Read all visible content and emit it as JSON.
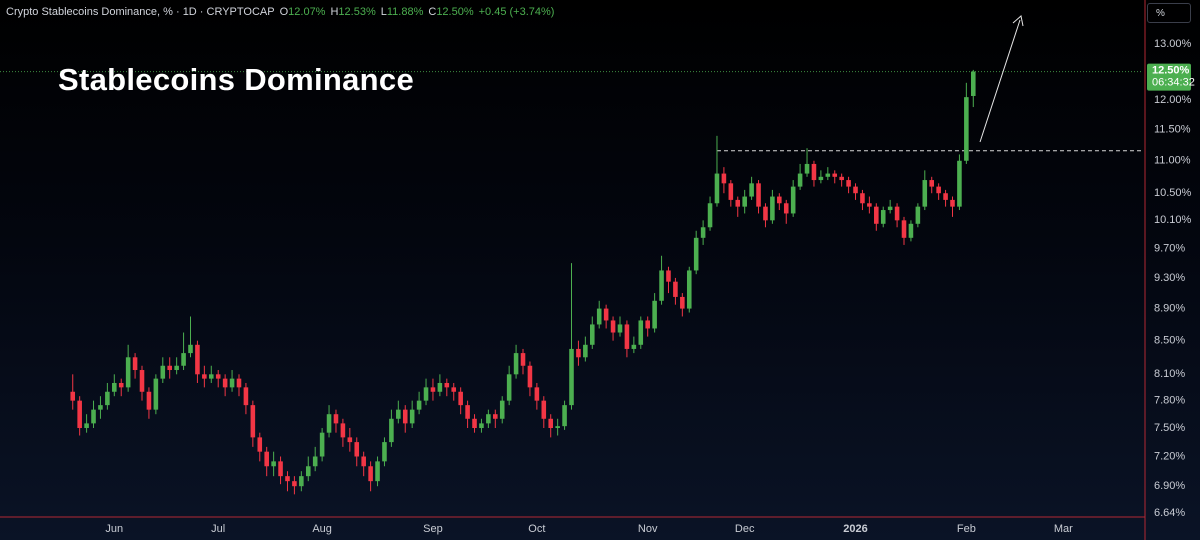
{
  "chart_data": {
    "type": "candlestick",
    "symbol": "Crypto Stablecoins Dominance, % · 1D · CRYPTOCAP",
    "ohlc_legend": [
      {
        "key": "O",
        "value": "12.07%"
      },
      {
        "key": "H",
        "value": "12.53%"
      },
      {
        "key": "L",
        "value": "11.88%"
      },
      {
        "key": "C",
        "value": "12.50%"
      }
    ],
    "change": "+0.45 (+3.74%)",
    "title": "Stablecoins Dominance",
    "unit_button": "%",
    "last_price_label": "12.50%",
    "countdown": "06:34:32",
    "resistance_level": 11.16,
    "log_scale": true,
    "grid": false,
    "up_color": "#4caf50",
    "down_color": "#f23645",
    "ylim": [
      6.64,
      13.85
    ],
    "yticks": [
      {
        "value": 13,
        "label": "13.00%"
      },
      {
        "value": 12,
        "label": "12.00%"
      },
      {
        "value": 11.5,
        "label": "11.50%"
      },
      {
        "value": 11,
        "label": "11.00%"
      },
      {
        "value": 10.5,
        "label": "10.50%"
      },
      {
        "value": 10.1,
        "label": "10.10%"
      },
      {
        "value": 9.7,
        "label": "9.70%"
      },
      {
        "value": 9.3,
        "label": "9.30%"
      },
      {
        "value": 8.9,
        "label": "8.90%"
      },
      {
        "value": 8.5,
        "label": "8.50%"
      },
      {
        "value": 8.1,
        "label": "8.10%"
      },
      {
        "value": 7.8,
        "label": "7.80%"
      },
      {
        "value": 7.5,
        "label": "7.50%"
      },
      {
        "value": 7.2,
        "label": "7.20%"
      },
      {
        "value": 6.9,
        "label": "6.90%"
      },
      {
        "value": 6.64,
        "label": "6.64%"
      }
    ],
    "categories": [
      null,
      null,
      null,
      null,
      null,
      null,
      null,
      null,
      null,
      null,
      null,
      null,
      null,
      null,
      null,
      null,
      "Jun",
      null,
      null,
      null,
      null,
      null,
      null,
      null,
      null,
      null,
      null,
      null,
      null,
      null,
      null,
      "Jul",
      null,
      null,
      null,
      null,
      null,
      null,
      null,
      null,
      null,
      null,
      null,
      null,
      null,
      null,
      "Aug",
      null,
      null,
      null,
      null,
      null,
      null,
      null,
      null,
      null,
      null,
      null,
      null,
      null,
      null,
      null,
      "Sep",
      null,
      null,
      null,
      null,
      null,
      null,
      null,
      null,
      null,
      null,
      null,
      null,
      null,
      null,
      "Oct",
      null,
      null,
      null,
      null,
      null,
      null,
      null,
      null,
      null,
      null,
      null,
      null,
      null,
      null,
      null,
      "Nov",
      null,
      null,
      null,
      null,
      null,
      null,
      null,
      null,
      null,
      null,
      null,
      null,
      null,
      "Dec",
      null,
      null,
      null,
      null,
      null,
      null,
      null,
      null,
      null,
      null,
      null,
      null,
      null,
      null,
      null,
      "2026",
      null,
      null,
      null,
      null,
      null,
      null,
      null,
      null,
      null,
      null,
      null,
      null,
      null,
      null,
      null,
      "Feb",
      null,
      null,
      null,
      null,
      null,
      null,
      null,
      null,
      null,
      null,
      null,
      null,
      null,
      "Mar",
      null,
      null,
      null,
      null,
      null,
      null,
      null,
      null,
      null,
      null,
      null
    ],
    "open": [
      null,
      null,
      null,
      null,
      null,
      null,
      null,
      null,
      null,
      null,
      7.9,
      7.8,
      7.5,
      7.55,
      7.7,
      7.75,
      7.9,
      8.0,
      7.95,
      8.3,
      8.15,
      7.9,
      7.7,
      8.05,
      8.2,
      8.15,
      8.2,
      8.35,
      8.45,
      8.1,
      8.05,
      8.1,
      8.05,
      7.95,
      8.05,
      7.95,
      7.75,
      7.4,
      7.25,
      7.1,
      7.15,
      7.0,
      6.95,
      6.9,
      7.0,
      7.1,
      7.2,
      7.45,
      7.65,
      7.55,
      7.4,
      7.35,
      7.2,
      7.1,
      6.95,
      7.15,
      7.35,
      7.6,
      7.7,
      7.55,
      7.7,
      7.8,
      7.95,
      7.9,
      8.0,
      7.95,
      7.9,
      7.75,
      7.6,
      7.5,
      7.55,
      7.65,
      7.6,
      7.8,
      8.1,
      8.35,
      8.2,
      7.95,
      7.8,
      7.6,
      7.5,
      7.52,
      7.75,
      8.4,
      8.3,
      8.45,
      8.7,
      8.9,
      8.75,
      8.6,
      8.7,
      8.4,
      8.45,
      8.75,
      8.65,
      9.0,
      9.4,
      9.25,
      9.05,
      8.9,
      9.4,
      9.85,
      10.0,
      10.35,
      10.8,
      10.65,
      10.4,
      10.3,
      10.45,
      10.65,
      10.3,
      10.1,
      10.45,
      10.35,
      10.2,
      10.6,
      10.8,
      10.95,
      10.7,
      10.75,
      10.8,
      10.75,
      10.7,
      10.6,
      10.5,
      10.35,
      10.3,
      10.05,
      10.25,
      10.3,
      10.1,
      9.85,
      10.05,
      10.3,
      10.7,
      10.6,
      10.5,
      10.4,
      10.3,
      11.0,
      12.07,
      null,
      null,
      null,
      null,
      null,
      null,
      null,
      null,
      null,
      null,
      null,
      null,
      null,
      null,
      null,
      null,
      null,
      null,
      null,
      null,
      null,
      null,
      null,
      null
    ],
    "high": [
      null,
      null,
      null,
      null,
      null,
      null,
      null,
      null,
      null,
      null,
      8.1,
      7.85,
      7.65,
      7.8,
      7.85,
      8.0,
      8.1,
      8.05,
      8.45,
      8.35,
      8.2,
      7.95,
      8.1,
      8.3,
      8.3,
      8.3,
      8.6,
      8.8,
      8.5,
      8.2,
      8.2,
      8.15,
      8.1,
      8.15,
      8.1,
      8.0,
      7.8,
      7.45,
      7.3,
      7.25,
      7.2,
      7.05,
      7.0,
      7.05,
      7.2,
      7.3,
      7.5,
      7.75,
      7.7,
      7.6,
      7.5,
      7.4,
      7.25,
      7.15,
      7.2,
      7.4,
      7.7,
      7.8,
      7.75,
      7.8,
      7.9,
      8.05,
      8.05,
      8.1,
      8.05,
      8.0,
      7.95,
      7.8,
      7.65,
      7.6,
      7.7,
      7.7,
      7.85,
      8.2,
      8.45,
      8.4,
      8.25,
      8.0,
      7.85,
      7.65,
      7.6,
      7.8,
      9.5,
      8.5,
      8.55,
      8.8,
      9.0,
      8.95,
      8.8,
      8.8,
      8.75,
      8.55,
      8.8,
      8.8,
      9.1,
      9.6,
      9.45,
      9.3,
      9.1,
      9.45,
      9.95,
      10.1,
      10.45,
      11.4,
      10.9,
      10.7,
      10.45,
      10.55,
      10.75,
      10.7,
      10.35,
      10.55,
      10.5,
      10.4,
      10.7,
      10.95,
      11.2,
      11.0,
      10.85,
      10.9,
      10.85,
      10.8,
      10.75,
      10.65,
      10.55,
      10.45,
      10.35,
      10.3,
      10.4,
      10.35,
      10.15,
      10.1,
      10.35,
      10.85,
      10.75,
      10.65,
      10.55,
      10.45,
      11.1,
      12.3,
      12.53,
      null,
      null,
      null,
      null,
      null,
      null,
      null,
      null,
      null,
      null,
      null,
      null,
      null,
      null,
      null,
      null,
      null,
      null,
      null,
      null,
      null,
      null,
      null,
      null
    ],
    "low": [
      null,
      null,
      null,
      null,
      null,
      null,
      null,
      null,
      null,
      null,
      7.7,
      7.42,
      7.45,
      7.5,
      7.6,
      7.7,
      7.85,
      7.85,
      7.9,
      8.05,
      7.8,
      7.6,
      7.65,
      8.0,
      8.05,
      8.1,
      8.15,
      8.3,
      8.0,
      7.95,
      8.0,
      7.95,
      7.85,
      7.9,
      7.85,
      7.65,
      7.3,
      7.15,
      7.0,
      7.0,
      6.92,
      6.85,
      6.82,
      6.85,
      6.95,
      7.05,
      7.15,
      7.4,
      7.45,
      7.3,
      7.25,
      7.1,
      7.0,
      6.85,
      6.9,
      7.1,
      7.3,
      7.55,
      7.45,
      7.5,
      7.65,
      7.75,
      7.8,
      7.85,
      7.85,
      7.8,
      7.65,
      7.5,
      7.45,
      7.45,
      7.5,
      7.5,
      7.55,
      7.75,
      8.05,
      8.1,
      7.85,
      7.7,
      7.5,
      7.4,
      7.42,
      7.48,
      7.7,
      8.2,
      8.25,
      8.4,
      8.65,
      8.65,
      8.5,
      8.55,
      8.3,
      8.35,
      8.4,
      8.55,
      8.6,
      8.95,
      9.1,
      8.95,
      8.8,
      8.85,
      9.35,
      9.75,
      9.95,
      10.3,
      10.5,
      10.3,
      10.15,
      10.2,
      10.4,
      10.2,
      10.0,
      10.05,
      10.25,
      10.05,
      10.15,
      10.55,
      10.75,
      10.6,
      10.65,
      10.7,
      10.65,
      10.6,
      10.5,
      10.4,
      10.25,
      10.2,
      9.95,
      10.0,
      10.2,
      10.0,
      9.75,
      9.8,
      10.0,
      10.25,
      10.5,
      10.4,
      10.3,
      10.15,
      10.25,
      10.95,
      11.88,
      null,
      null,
      null,
      null,
      null,
      null,
      null,
      null,
      null,
      null,
      null,
      null,
      null,
      null,
      null,
      null,
      null,
      null,
      null,
      null,
      null,
      null,
      null,
      null
    ],
    "close": [
      null,
      null,
      null,
      null,
      null,
      null,
      null,
      null,
      null,
      null,
      7.8,
      7.5,
      7.55,
      7.7,
      7.75,
      7.9,
      8.0,
      7.95,
      8.3,
      8.15,
      7.9,
      7.7,
      8.05,
      8.2,
      8.15,
      8.2,
      8.35,
      8.45,
      8.1,
      8.05,
      8.1,
      8.05,
      7.95,
      8.05,
      7.95,
      7.75,
      7.4,
      7.25,
      7.1,
      7.15,
      7.0,
      6.95,
      6.9,
      7.0,
      7.1,
      7.2,
      7.45,
      7.65,
      7.55,
      7.4,
      7.35,
      7.2,
      7.1,
      6.95,
      7.15,
      7.35,
      7.6,
      7.7,
      7.55,
      7.7,
      7.8,
      7.95,
      7.9,
      8.0,
      7.95,
      7.9,
      7.75,
      7.6,
      7.5,
      7.55,
      7.65,
      7.6,
      7.8,
      8.1,
      8.35,
      8.2,
      7.95,
      7.8,
      7.6,
      7.5,
      7.52,
      7.75,
      8.4,
      8.3,
      8.45,
      8.7,
      8.9,
      8.75,
      8.6,
      8.7,
      8.4,
      8.45,
      8.75,
      8.65,
      9.0,
      9.4,
      9.25,
      9.05,
      8.9,
      9.4,
      9.85,
      10.0,
      10.35,
      10.8,
      10.65,
      10.4,
      10.3,
      10.45,
      10.65,
      10.3,
      10.1,
      10.45,
      10.35,
      10.2,
      10.6,
      10.8,
      10.95,
      10.7,
      10.75,
      10.8,
      10.75,
      10.7,
      10.6,
      10.5,
      10.35,
      10.3,
      10.05,
      10.25,
      10.3,
      10.1,
      9.85,
      10.05,
      10.3,
      10.7,
      10.6,
      10.5,
      10.4,
      10.3,
      11.0,
      12.05,
      12.5,
      null,
      null,
      null,
      null,
      null,
      null,
      null,
      null,
      null,
      null,
      null,
      null,
      null,
      null,
      null,
      null,
      null,
      null,
      null,
      null,
      null,
      null,
      null,
      null
    ]
  }
}
